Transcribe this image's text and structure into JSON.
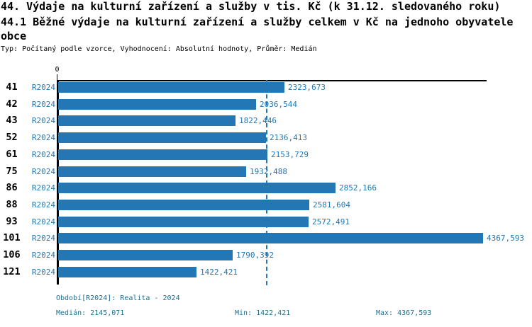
{
  "header": {
    "title_line1": "44. Výdaje na kulturní zařízení a služby v tis. Kč (k 31.12. sledovaného roku)",
    "title_line2": "44.1 Běžné výdaje na kulturní zařízení a služby celkem v Kč na jednoho obyvatele",
    "title_line3": "obce",
    "subtitle": "Typ: Počítaný podle vzorce, Vyhodnocení: Absolutní hodnoty, Průměr: Medián"
  },
  "chart_data": {
    "type": "bar",
    "orientation": "horizontal",
    "series_label": "R2024",
    "categories": [
      "41",
      "42",
      "43",
      "52",
      "61",
      "75",
      "86",
      "88",
      "93",
      "101",
      "106",
      "121"
    ],
    "values": [
      2323.673,
      2036.544,
      1822.446,
      2136.413,
      2153.729,
      1932.488,
      2852.166,
      2581.604,
      2572.491,
      4367.593,
      1790.392,
      1422.421
    ],
    "value_labels": [
      "2323,673",
      "2036,544",
      "1822,446",
      "2136,413",
      "2153,729",
      "1932,488",
      "2852,166",
      "2581,604",
      "2572,491",
      "4367,593",
      "1790,392",
      "1422,421"
    ],
    "axis_origin_label": "0",
    "xlim": [
      0,
      4415
    ],
    "median": 2145.071,
    "min": 1422.421,
    "max": 4367.593,
    "bar_color": "#2277b4",
    "median_line_color": "#2277b4",
    "grid": false,
    "legend_position": "none"
  },
  "footer": {
    "period": "Období[R2024]: Realita - 2024",
    "median": "Medián: 2145,071",
    "min": "Min: 1422,421",
    "max": "Max: 4367,593"
  }
}
